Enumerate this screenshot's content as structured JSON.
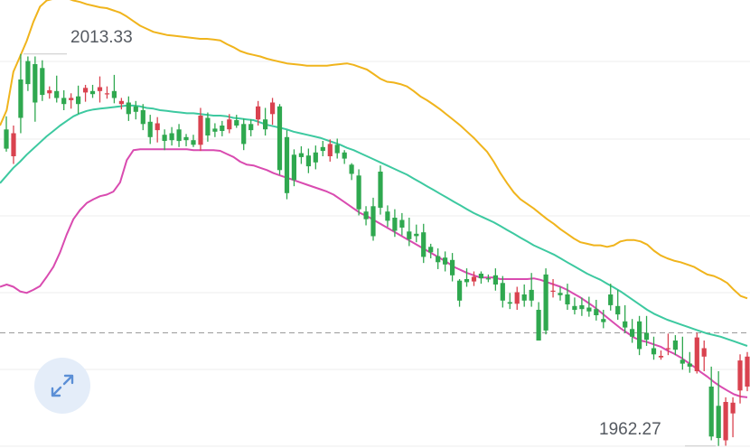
{
  "chart_data": {
    "type": "candlestick",
    "title": "",
    "xlabel": "",
    "ylabel": "",
    "ylim": [
      1958,
      2021
    ],
    "grid": true,
    "annotations": {
      "high_label": "2013.33",
      "low_label": "1962.27"
    },
    "reference_line": 1977,
    "colors": {
      "up": "#d9424f",
      "down": "#2fa84f",
      "upper_band": "#f0b41c",
      "middle_band": "#3dc9a0",
      "lower_band": "#d94bb0",
      "grid": "#ececec"
    },
    "candles": [
      [
        2003.5,
        2005.2,
        2000.6,
        2001.0
      ],
      [
        2000.0,
        2004.0,
        1999.0,
        2003.0
      ],
      [
        2010.0,
        2013.33,
        2003.0,
        2005.0
      ],
      [
        2012.4,
        2013.0,
        2008.5,
        2009.4
      ],
      [
        2012.0,
        2013.0,
        2004.5,
        2007.0
      ],
      [
        2011.5,
        2012.5,
        2007.2,
        2008.0
      ],
      [
        2008.2,
        2009.1,
        2007.5,
        2008.6
      ],
      [
        2008.5,
        2010.5,
        2007.0,
        2007.6
      ],
      [
        2007.6,
        2008.6,
        2006.0,
        2006.8
      ],
      [
        2007.3,
        2008.2,
        2006.2,
        2007.6
      ],
      [
        2007.8,
        2009.2,
        2005.5,
        2006.8
      ],
      [
        2008.3,
        2009.3,
        2007.1,
        2008.9
      ],
      [
        2008.5,
        2009.3,
        2007.6,
        2008.1
      ],
      [
        2008.5,
        2010.4,
        2007.0,
        2009.0
      ],
      [
        2008.2,
        2009.1,
        2007.5,
        2008.2
      ],
      [
        2008.5,
        2010.6,
        2006.9,
        2007.6
      ],
      [
        2006.8,
        2007.6,
        2006.1,
        2007.2
      ],
      [
        2007.0,
        2007.8,
        2004.6,
        2005.5
      ],
      [
        2006.5,
        2007.2,
        2004.8,
        2005.8
      ],
      [
        2006.0,
        2006.8,
        2003.4,
        2004.2
      ],
      [
        2004.5,
        2005.4,
        2001.6,
        2002.5
      ],
      [
        2003.4,
        2005.1,
        2001.8,
        2004.3
      ],
      [
        2002.8,
        2003.5,
        2000.8,
        2002.0
      ],
      [
        2003.0,
        2003.8,
        2001.4,
        2002.1
      ],
      [
        2003.5,
        2004.2,
        2001.2,
        2002.0
      ],
      [
        2002.5,
        2002.9,
        2001.3,
        2002.1
      ],
      [
        2002.1,
        2002.8,
        2001.2,
        2001.5
      ],
      [
        2001.5,
        2006.3,
        2000.7,
        2005.3
      ],
      [
        2005.0,
        2005.7,
        2001.9,
        2002.7
      ],
      [
        2003.6,
        2004.3,
        2002.5,
        2003.2
      ],
      [
        2004.0,
        2004.6,
        2002.6,
        2003.3
      ],
      [
        2003.5,
        2005.5,
        2003.0,
        2004.8
      ],
      [
        2004.7,
        2005.4,
        2003.7,
        2004.0
      ],
      [
        2004.2,
        2004.9,
        2000.8,
        2001.6
      ],
      [
        2004.2,
        2004.8,
        2002.6,
        2003.4
      ],
      [
        2004.8,
        2007.2,
        2004.0,
        2006.5
      ],
      [
        2004.8,
        2006.3,
        2002.7,
        2003.5
      ],
      [
        2005.5,
        2007.6,
        2004.1,
        2007.0
      ],
      [
        2006.5,
        2006.8,
        1997.6,
        1998.2
      ],
      [
        2002.5,
        2003.4,
        1994.4,
        1995.2
      ],
      [
        2000.2,
        2000.9,
        1996.1,
        1996.9
      ],
      [
        2000.4,
        2001.3,
        1999.0,
        1999.9
      ],
      [
        2000.1,
        2001.0,
        1997.8,
        1998.7
      ],
      [
        2000.5,
        2001.4,
        1998.3,
        1999.2
      ],
      [
        2001.2,
        2002.0,
        2000.0,
        2000.7
      ],
      [
        2000.0,
        2002.2,
        1999.3,
        2001.6
      ],
      [
        2001.5,
        2002.3,
        1999.7,
        2000.4
      ],
      [
        2000.5,
        2000.8,
        1999.0,
        1999.7
      ],
      [
        1998.9,
        1999.1,
        1996.9,
        1997.7
      ],
      [
        1997.5,
        1998.3,
        1992.3,
        1993.1
      ],
      [
        1992.8,
        1993.5,
        1991.0,
        1991.8
      ],
      [
        1993.5,
        1994.6,
        1989.0,
        1989.6
      ],
      [
        1998.0,
        1998.8,
        1992.4,
        1993.3
      ],
      [
        1992.8,
        1993.6,
        1990.8,
        1991.6
      ],
      [
        1992.0,
        1993.1,
        1989.5,
        1990.3
      ],
      [
        1991.7,
        1992.6,
        1989.7,
        1990.7
      ],
      [
        1990.2,
        1992.0,
        1988.3,
        1989.2
      ],
      [
        1989.9,
        1991.1,
        1988.8,
        1989.6
      ],
      [
        1990.1,
        1991.2,
        1986.1,
        1986.9
      ],
      [
        1988.2,
        1988.6,
        1986.7,
        1987.5
      ],
      [
        1987.0,
        1988.0,
        1985.3,
        1986.2
      ],
      [
        1986.8,
        1987.6,
        1985.0,
        1985.9
      ],
      [
        1986.5,
        1987.4,
        1983.7,
        1984.5
      ],
      [
        1983.8,
        1984.0,
        1980.4,
        1981.2
      ],
      [
        1984.0,
        1985.4,
        1983.0,
        1983.6
      ],
      [
        1983.7,
        1985.0,
        1983.1,
        1984.3
      ],
      [
        1984.7,
        1985.0,
        1983.4,
        1984.1
      ],
      [
        1984.1,
        1984.6,
        1983.6,
        1984.0
      ],
      [
        1984.5,
        1985.4,
        1982.5,
        1983.3
      ],
      [
        1983.5,
        1984.4,
        1980.3,
        1981.2
      ],
      [
        1981.0,
        1982.2,
        1980.1,
        1980.8
      ],
      [
        1980.8,
        1983.0,
        1980.0,
        1982.3
      ],
      [
        1982.0,
        1983.3,
        1980.4,
        1981.2
      ],
      [
        1982.6,
        1984.8,
        1980.4,
        1981.2
      ],
      [
        1980.0,
        1981.0,
        1976.0,
        1976.0
      ],
      [
        1984.6,
        1985.4,
        1976.8,
        1977.3
      ],
      [
        1982.4,
        1984.0,
        1981.6,
        1982.5
      ],
      [
        1982.2,
        1983.0,
        1981.2,
        1981.9
      ],
      [
        1982.0,
        1983.4,
        1980.0,
        1980.7
      ],
      [
        1980.5,
        1981.6,
        1979.4,
        1980.0
      ],
      [
        1980.6,
        1981.6,
        1979.2,
        1980.1
      ],
      [
        1980.3,
        1981.7,
        1979.1,
        1979.8
      ],
      [
        1980.1,
        1981.3,
        1978.6,
        1979.3
      ],
      [
        1978.8,
        1980.0,
        1977.6,
        1978.4
      ],
      [
        1982.0,
        1983.4,
        1979.9,
        1980.6
      ],
      [
        1980.5,
        1982.6,
        1978.7,
        1979.4
      ],
      [
        1978.5,
        1980.6,
        1977.0,
        1977.7
      ],
      [
        1977.5,
        1978.8,
        1975.7,
        1976.5
      ],
      [
        1978.5,
        1979.2,
        1974.1,
        1974.9
      ],
      [
        1977.0,
        1979.2,
        1975.3,
        1976.1
      ],
      [
        1975.0,
        1976.5,
        1973.5,
        1974.2
      ],
      [
        1973.8,
        1974.7,
        1973.5,
        1974.0
      ],
      [
        1975.0,
        1976.9,
        1974.1,
        1975.0
      ],
      [
        1976.0,
        1976.7,
        1974.1,
        1974.8
      ],
      [
        1973.5,
        1976.5,
        1972.2,
        1973.0
      ],
      [
        1973.0,
        1974.5,
        1971.8,
        1972.6
      ],
      [
        1972.0,
        1977.0,
        1971.7,
        1976.4
      ],
      [
        1973.9,
        1976.0,
        1972.0,
        1975.0
      ],
      [
        1970.0,
        1972.6,
        1963.0,
        1963.5
      ],
      [
        1967.5,
        1972.0,
        1962.27,
        1963.3
      ],
      [
        1963.0,
        1968.6,
        1962.3,
        1968.0
      ],
      [
        1966.5,
        1968.6,
        1963.4,
        1967.9
      ],
      [
        1969.5,
        1974.2,
        1967.8,
        1973.4
      ],
      [
        1970.0,
        1974.5,
        1969.4,
        1973.9
      ]
    ],
    "upper_band": [
      2004,
      2006,
      2011,
      2013,
      2015,
      2017.5,
      2019.5,
      2020.3,
      2020.5,
      2020.6,
      2020.6,
      2020.3,
      2020.1,
      2019.8,
      2019.6,
      2019.4,
      2019.3,
      2019.0,
      2018.7,
      2018.2,
      2017.6,
      2017.0,
      2016.6,
      2016.2,
      2016.0,
      2015.8,
      2015.7,
      2015.6,
      2015.5,
      2015.4,
      2015.3,
      2015.3,
      2015.2,
      2015.1,
      2014.6,
      2014.2,
      2013.7,
      2013.4,
      2013.2,
      2013.0,
      2012.7,
      2012.5,
      2012.3,
      2012.1,
      2012.0,
      2011.9,
      2011.8,
      2011.8,
      2011.8,
      2011.8,
      2011.9,
      2012.0,
      2012.1,
      2011.9,
      2011.6,
      2011.3,
      2010.7,
      2010.1,
      2009.7,
      2009.6,
      2009.4,
      2009.1,
      2008.5,
      2007.8,
      2007.3,
      2006.7,
      2006.1,
      2005.4,
      2004.7,
      2004.0,
      2003.2,
      2002.4,
      2001.5,
      2000.6,
      1999.3,
      1997.8,
      1996.5,
      1995.3,
      1994.4,
      1993.8,
      1993.2,
      1992.5,
      1991.8,
      1991.2,
      1990.5,
      1989.9,
      1989.3,
      1988.8,
      1988.6,
      1988.4,
      1988.4,
      1988.2,
      1988.4,
      1988.9,
      1989.1,
      1989.1,
      1988.9,
      1988.5,
      1987.7,
      1987.1,
      1986.7,
      1986.4,
      1986.2,
      1985.9,
      1985.6,
      1985.1,
      1984.6,
      1984.4,
      1984.0,
      1983.5,
      1982.6,
      1981.8,
      1981.5
    ],
    "middle_band": [
      1996.5,
      1997.5,
      1998.5,
      1999.3,
      2000.2,
      2001.0,
      2001.8,
      2002.6,
      2003.3,
      2004.0,
      2004.6,
      2005.2,
      2005.6,
      2005.9,
      2006.1,
      2006.2,
      2006.3,
      2006.4,
      2006.5,
      2006.6,
      2006.6,
      2006.5,
      2006.3,
      2006.2,
      2006.0,
      2005.9,
      2005.8,
      2005.7,
      2005.6,
      2005.6,
      2005.5,
      2005.4,
      2005.3,
      2005.3,
      2005.2,
      2005.0,
      2004.9,
      2004.8,
      2004.7,
      2004.4,
      2004.1,
      2003.9,
      2003.7,
      2003.5,
      2003.2,
      2003.0,
      2002.8,
      2002.6,
      2002.4,
      2002.1,
      2001.8,
      2001.5,
      2001.1,
      2000.8,
      2000.4,
      2000.0,
      1999.6,
      1999.2,
      1998.8,
      1998.4,
      1998.0,
      1997.6,
      1997.1,
      1996.6,
      1996.1,
      1995.6,
      1995.1,
      1994.6,
      1994.1,
      1993.6,
      1993.1,
      1992.6,
      1992.2,
      1991.8,
      1991.4,
      1990.9,
      1990.4,
      1989.9,
      1989.4,
      1988.9,
      1988.4,
      1988.0,
      1987.6,
      1987.2,
      1986.7,
      1986.2,
      1985.7,
      1985.2,
      1984.7,
      1984.3,
      1983.9,
      1983.4,
      1982.9,
      1982.4,
      1981.8,
      1981.2,
      1980.6,
      1980.0,
      1979.5,
      1979.1,
      1978.7,
      1978.4,
      1978.1,
      1977.8,
      1977.5,
      1977.2,
      1976.9,
      1976.7,
      1976.5,
      1976.2,
      1975.9,
      1975.6,
      1975.3
    ],
    "lower_band": [
      1983.0,
      1983.3,
      1983.0,
      1982.4,
      1982.2,
      1982.6,
      1983.1,
      1984.3,
      1985.6,
      1987.5,
      1989.8,
      1991.8,
      1993.0,
      1993.9,
      1994.4,
      1994.8,
      1995.0,
      1995.4,
      1996.6,
      1999.5,
      2000.8,
      2000.9,
      2000.9,
      2000.9,
      2000.9,
      2000.9,
      2000.9,
      2000.9,
      2000.9,
      2000.8,
      2000.8,
      2000.8,
      2000.8,
      2000.7,
      2000.3,
      1999.9,
      1999.3,
      1998.9,
      1998.8,
      1998.5,
      1998.2,
      1997.8,
      1997.5,
      1997.2,
      1996.9,
      1996.6,
      1996.3,
      1996.0,
      1995.7,
      1995.4,
      1995.0,
      1994.4,
      1993.8,
      1993.2,
      1992.6,
      1992.2,
      1991.7,
      1991.2,
      1990.7,
      1990.2,
      1989.7,
      1989.2,
      1988.7,
      1988.2,
      1987.7,
      1987.2,
      1986.7,
      1986.2,
      1985.6,
      1985.2,
      1984.8,
      1984.5,
      1984.2,
      1984.2,
      1984.2,
      1984.0,
      1984.0,
      1984.0,
      1984.0,
      1984.0,
      1984.1,
      1983.9,
      1983.6,
      1983.3,
      1983.0,
      1982.6,
      1982.1,
      1981.6,
      1981.0,
      1980.4,
      1979.7,
      1979.0,
      1978.3,
      1977.6,
      1977.0,
      1976.4,
      1976.0,
      1975.8,
      1975.5,
      1975.2,
      1974.7,
      1974.3,
      1973.8,
      1973.2,
      1972.6,
      1971.9,
      1971.3,
      1970.6,
      1970.0,
      1969.5,
      1969.0,
      1968.7,
      1968.6
    ]
  },
  "controls": {
    "expand_icon": "expand-arrows-icon"
  }
}
